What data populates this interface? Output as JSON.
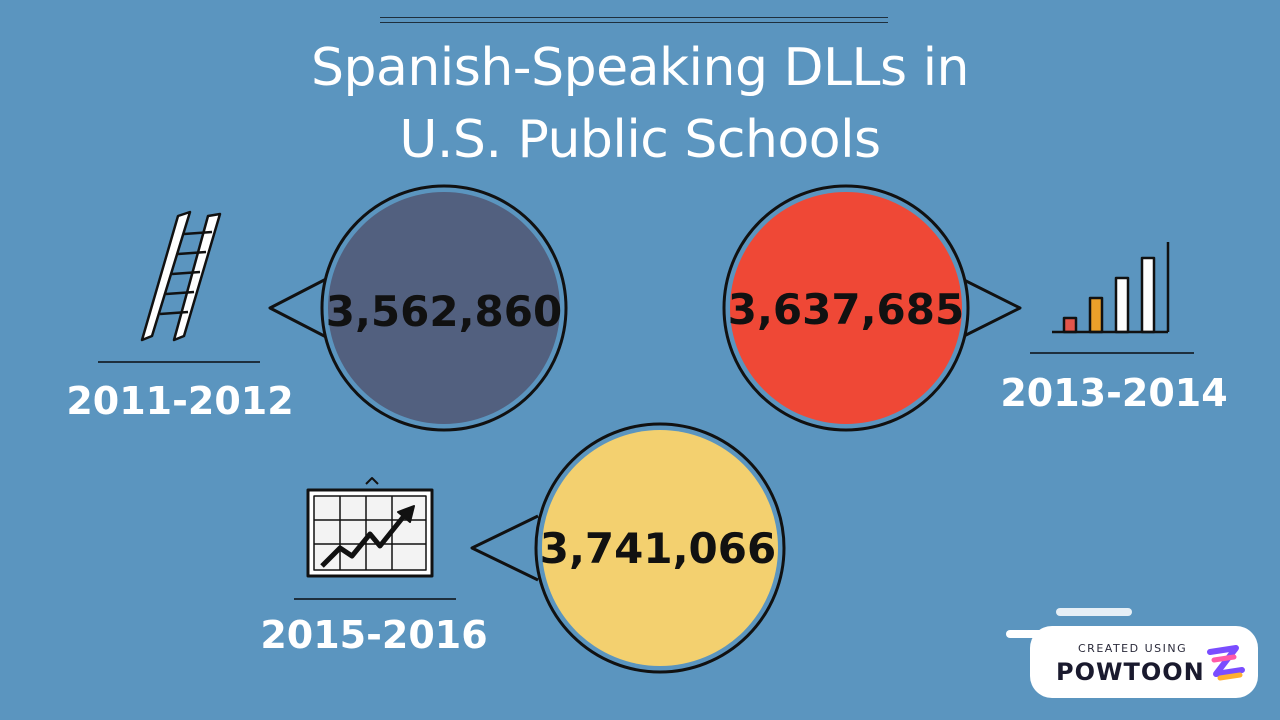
{
  "title": {
    "line1": "Spanish-Speaking DLLs in",
    "line2": "U.S. Public Schools"
  },
  "entries": [
    {
      "year": "2011-2012",
      "value": "3,562,860",
      "color": "#52607f",
      "icon": "ladder-icon"
    },
    {
      "year": "2013-2014",
      "value": "3,637,685",
      "color": "#ef4836",
      "icon": "bar-chart-icon"
    },
    {
      "year": "2015-2016",
      "value": "3,741,066",
      "color": "#f3d06f",
      "icon": "growth-chart-icon"
    }
  ],
  "badge": {
    "caption": "CREATED USING",
    "brand": "POWTOON"
  },
  "colors": {
    "background": "#5b95bf",
    "outline": "#111111"
  }
}
